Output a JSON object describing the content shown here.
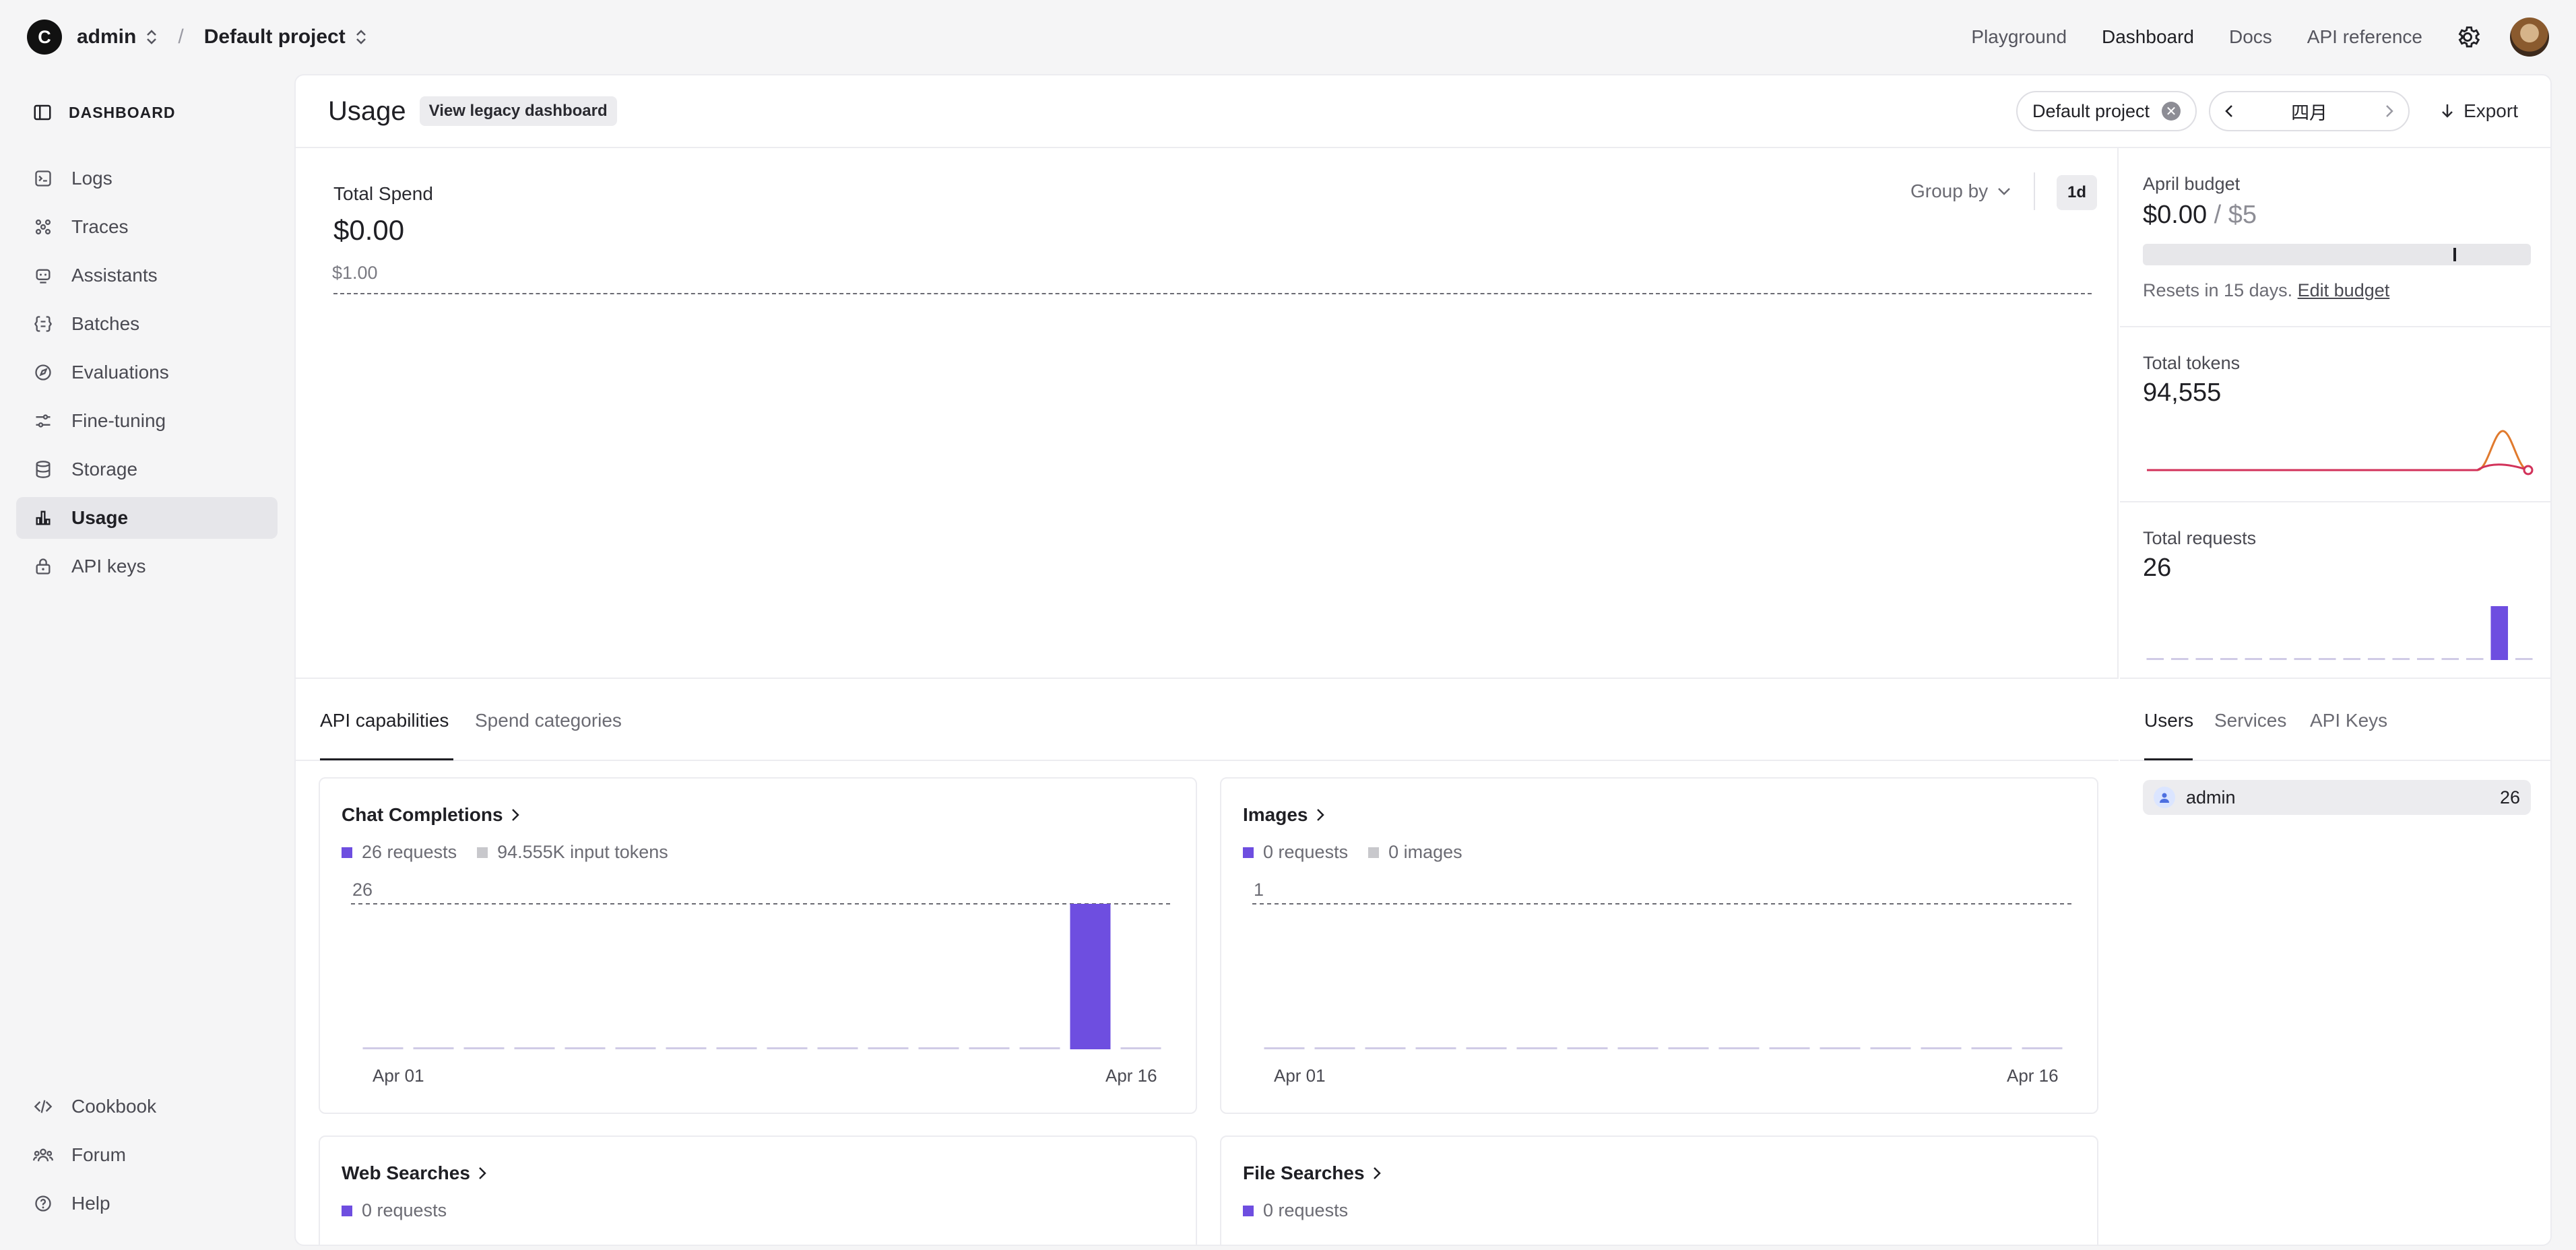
{
  "topbar": {
    "org_initial": "C",
    "org_name": "admin",
    "project_name": "Default project",
    "nav": [
      "Playground",
      "Dashboard",
      "Docs",
      "API reference"
    ],
    "active_nav": "Dashboard"
  },
  "sidebar": {
    "heading": "DASHBOARD",
    "items": [
      {
        "label": "Logs",
        "icon": "logs-icon"
      },
      {
        "label": "Traces",
        "icon": "traces-icon"
      },
      {
        "label": "Assistants",
        "icon": "assistants-icon"
      },
      {
        "label": "Batches",
        "icon": "batches-icon"
      },
      {
        "label": "Evaluations",
        "icon": "evaluations-icon"
      },
      {
        "label": "Fine-tuning",
        "icon": "fine-tuning-icon"
      },
      {
        "label": "Storage",
        "icon": "storage-icon"
      },
      {
        "label": "Usage",
        "icon": "usage-icon"
      },
      {
        "label": "API keys",
        "icon": "lock-icon"
      }
    ],
    "active": "Usage",
    "footer": [
      {
        "label": "Cookbook",
        "icon": "code-icon"
      },
      {
        "label": "Forum",
        "icon": "forum-icon"
      },
      {
        "label": "Help",
        "icon": "help-icon"
      }
    ]
  },
  "header": {
    "title": "Usage",
    "legacy_button": "View legacy dashboard",
    "project_filter": "Default project",
    "month": "四月",
    "export": "Export"
  },
  "spend": {
    "label": "Total Spend",
    "value": "$0.00",
    "axis_max_label": "$1.00",
    "group_by": "Group by",
    "interval": "1d"
  },
  "budget": {
    "label": "April budget",
    "spent": "$0.00",
    "separator": " / ",
    "limit": "$5",
    "resets_text": "Resets in 15 days.",
    "edit_link": "Edit budget",
    "threshold_fraction": 0.8
  },
  "tokens": {
    "label": "Total tokens",
    "value": "94,555"
  },
  "requests": {
    "label": "Total requests",
    "value": "26"
  },
  "tabs": {
    "main": [
      "API capabilities",
      "Spend categories"
    ],
    "main_active": "API capabilities",
    "side": [
      "Users",
      "Services",
      "API Keys"
    ],
    "side_active": "Users"
  },
  "users": [
    {
      "name": "admin",
      "count": "26"
    }
  ],
  "cards": [
    {
      "title": "Chat Completions",
      "legend": [
        "26 requests",
        "94.555K input tokens"
      ],
      "ymax_label": "26",
      "x_start": "Apr 01",
      "x_end": "Apr 16"
    },
    {
      "title": "Images",
      "legend": [
        "0 requests",
        "0 images"
      ],
      "ymax_label": "1",
      "x_start": "Apr 01",
      "x_end": "Apr 16"
    },
    {
      "title": "Web Searches",
      "legend": [
        "0 requests"
      ]
    },
    {
      "title": "File Searches",
      "legend": [
        "0 requests"
      ]
    }
  ],
  "colors": {
    "accent": "#6e4ee0",
    "token_line_a": "#e07a2e",
    "token_line_b": "#d2325a"
  },
  "chart_data": [
    {
      "type": "bar",
      "categories": [
        "Apr 01",
        "Apr 02",
        "Apr 03",
        "Apr 04",
        "Apr 05",
        "Apr 06",
        "Apr 07",
        "Apr 08",
        "Apr 09",
        "Apr 10",
        "Apr 11",
        "Apr 12",
        "Apr 13",
        "Apr 14",
        "Apr 15",
        "Apr 16"
      ],
      "series": [
        {
          "values": [
            0,
            0,
            0,
            0,
            0,
            0,
            0,
            0,
            0,
            0,
            0,
            0,
            0,
            0,
            26,
            0
          ]
        }
      ],
      "ylim": [
        0,
        26
      ]
    },
    {
      "type": "bar",
      "categories": [
        "Apr 01",
        "Apr 02",
        "Apr 03",
        "Apr 04",
        "Apr 05",
        "Apr 06",
        "Apr 07",
        "Apr 08",
        "Apr 09",
        "Apr 10",
        "Apr 11",
        "Apr 12",
        "Apr 13",
        "Apr 14",
        "Apr 15",
        "Apr 16"
      ],
      "series": [
        {
          "values": [
            0,
            0,
            0,
            0,
            0,
            0,
            0,
            0,
            0,
            0,
            0,
            0,
            0,
            0,
            0,
            0
          ]
        }
      ],
      "ylim": [
        0,
        1
      ]
    },
    {
      "type": "bar",
      "categories": [
        "Apr 01",
        "Apr 02",
        "Apr 03",
        "Apr 04",
        "Apr 05",
        "Apr 06",
        "Apr 07",
        "Apr 08",
        "Apr 09",
        "Apr 10",
        "Apr 11",
        "Apr 12",
        "Apr 13",
        "Apr 14",
        "Apr 15",
        "Apr 16"
      ],
      "series": [
        {
          "values": [
            0,
            0,
            0,
            0,
            0,
            0,
            0,
            0,
            0,
            0,
            0,
            0,
            0,
            0,
            26,
            0
          ]
        }
      ]
    },
    {
      "type": "line",
      "x": [
        "Apr 01",
        "Apr 02",
        "Apr 03",
        "Apr 04",
        "Apr 05",
        "Apr 06",
        "Apr 07",
        "Apr 08",
        "Apr 09",
        "Apr 10",
        "Apr 11",
        "Apr 12",
        "Apr 13",
        "Apr 14",
        "Apr 15",
        "Apr 16"
      ],
      "series": [
        {
          "values": [
            0,
            0,
            0,
            0,
            0,
            0,
            0,
            0,
            0,
            0,
            0,
            0,
            0,
            0,
            94555,
            0
          ]
        }
      ]
    }
  ]
}
